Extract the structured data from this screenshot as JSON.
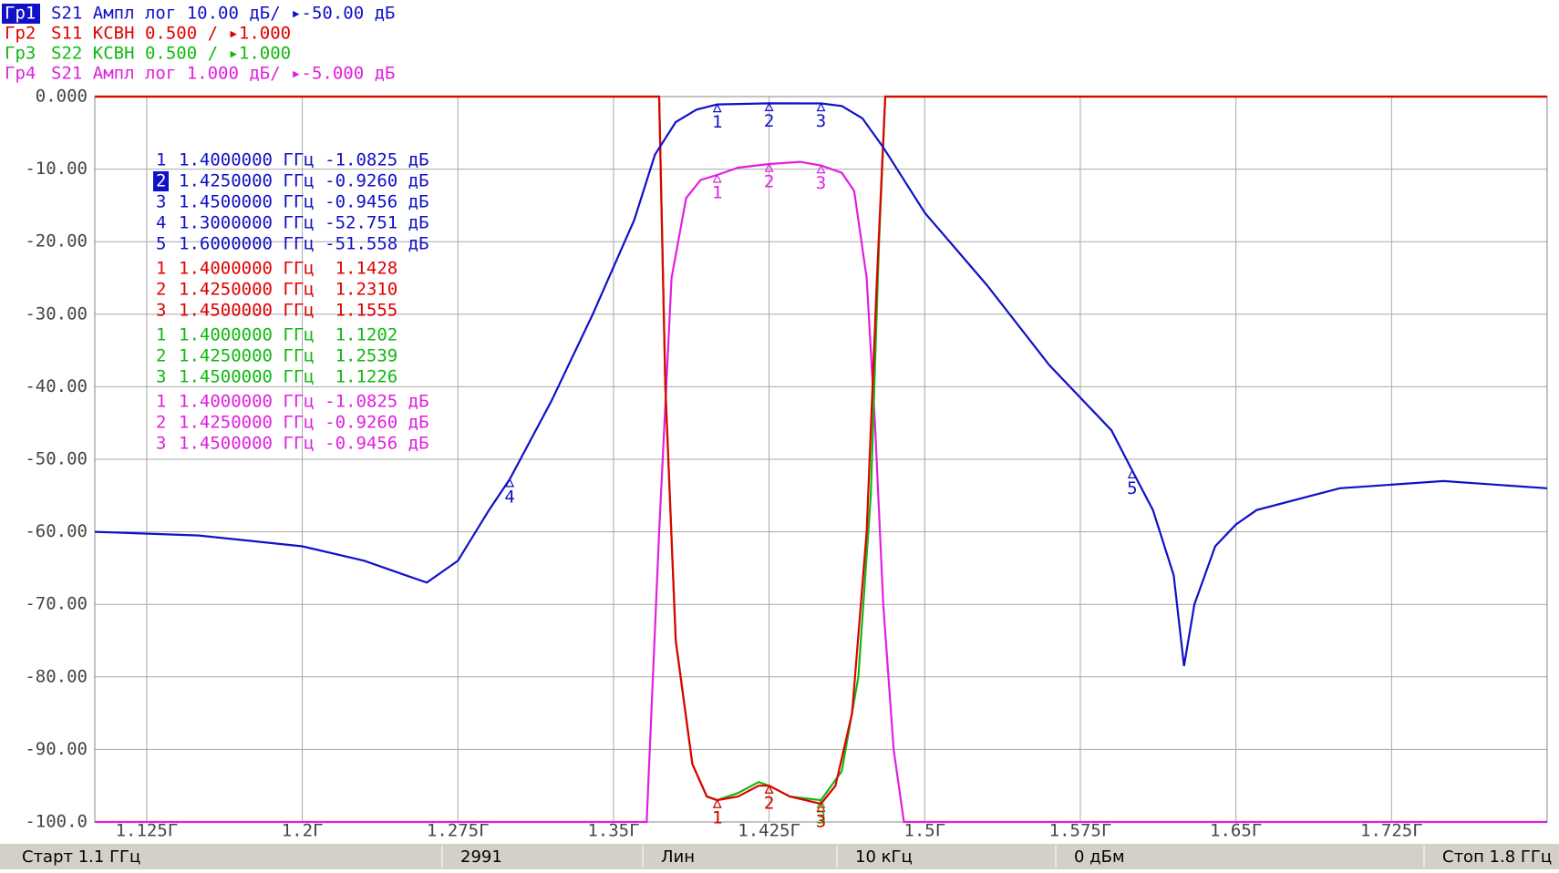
{
  "chart_data": {
    "type": "line",
    "header": [
      {
        "id": "Гр1",
        "text": "S21 Ампл лог 10.00 дБ/ ▸-50.00 дБ",
        "color": "#1010c8"
      },
      {
        "id": "Гр2",
        "text": "S11 КСВН 0.500 / ▸1.000",
        "color": "#e00000"
      },
      {
        "id": "Гр3",
        "text": "S22 КСВН 0.500 / ▸1.000",
        "color": "#10b810"
      },
      {
        "id": "Гр4",
        "text": "S21 Ампл лог 1.000 дБ/ ▸-5.000 дБ",
        "color": "#e020e0"
      }
    ],
    "marker_table": [
      {
        "color": "#1010c8",
        "rows": [
          [
            "1",
            "1.4000000 ГГц -1.0825 дБ"
          ],
          [
            "2",
            "1.4250000 ГГц -0.9260 дБ"
          ],
          [
            "3",
            "1.4500000 ГГц -0.9456 дБ"
          ],
          [
            "4",
            "1.3000000 ГГц -52.751 дБ"
          ],
          [
            "5",
            "1.6000000 ГГц -51.558 дБ"
          ]
        ]
      },
      {
        "color": "#e00000",
        "rows": [
          [
            "1",
            "1.4000000 ГГц  1.1428"
          ],
          [
            "2",
            "1.4250000 ГГц  1.2310"
          ],
          [
            "3",
            "1.4500000 ГГц  1.1555"
          ]
        ]
      },
      {
        "color": "#10b810",
        "rows": [
          [
            "1",
            "1.4000000 ГГц  1.1202"
          ],
          [
            "2",
            "1.4250000 ГГц  1.2539"
          ],
          [
            "3",
            "1.4500000 ГГц  1.1226"
          ]
        ]
      },
      {
        "color": "#e020e0",
        "rows": [
          [
            "1",
            "1.4000000 ГГц -1.0825 дБ"
          ],
          [
            "2",
            "1.4250000 ГГц -0.9260 дБ"
          ],
          [
            "3",
            "1.4500000 ГГц -0.9456 дБ"
          ]
        ]
      }
    ],
    "xlim": [
      1.1,
      1.8
    ],
    "xticks": [
      {
        "value": 1.125,
        "label": "1.125Г"
      },
      {
        "value": 1.2,
        "label": "1.2Г"
      },
      {
        "value": 1.275,
        "label": "1.275Г"
      },
      {
        "value": 1.35,
        "label": "1.35Г"
      },
      {
        "value": 1.425,
        "label": "1.425Г"
      },
      {
        "value": 1.5,
        "label": "1.5Г"
      },
      {
        "value": 1.575,
        "label": "1.575Г"
      },
      {
        "value": 1.65,
        "label": "1.65Г"
      },
      {
        "value": 1.725,
        "label": "1.725Г"
      }
    ],
    "ylim": [
      -100,
      0
    ],
    "yticks": [
      {
        "value": 0,
        "label": "0.000"
      },
      {
        "value": -10,
        "label": "-10.00"
      },
      {
        "value": -20,
        "label": "-20.00"
      },
      {
        "value": -30,
        "label": "-30.00"
      },
      {
        "value": -40,
        "label": "-40.00"
      },
      {
        "value": -50,
        "label": "-50.00"
      },
      {
        "value": -60,
        "label": "-60.00"
      },
      {
        "value": -70,
        "label": "-70.00"
      },
      {
        "value": -80,
        "label": "-80.00"
      },
      {
        "value": -90,
        "label": "-90.00"
      },
      {
        "value": -100,
        "label": "-100.0"
      }
    ],
    "grid": true,
    "series": [
      {
        "color": "#e020e0",
        "x": [
          1.1,
          1.366,
          1.372,
          1.378,
          1.385,
          1.392,
          1.4,
          1.41,
          1.425,
          1.44,
          1.45,
          1.46,
          1.466,
          1.472,
          1.476,
          1.48,
          1.485,
          1.49,
          1.8
        ],
        "values": [
          -100,
          -100,
          -60,
          -25,
          -14,
          -11.5,
          -10.8,
          -9.8,
          -9.3,
          -9,
          -9.5,
          -10.5,
          -13,
          -25,
          -45,
          -70,
          -90,
          -100,
          -100
        ],
        "markers": [
          {
            "label": "1",
            "x": 1.4,
            "y": -10.8
          },
          {
            "label": "2",
            "x": 1.425,
            "y": -9.3
          },
          {
            "label": "3",
            "x": 1.45,
            "y": -9.5
          }
        ]
      },
      {
        "color": "#10b810",
        "x": [
          1.1,
          1.372,
          1.375,
          1.38,
          1.388,
          1.395,
          1.4,
          1.41,
          1.42,
          1.425,
          1.435,
          1.45,
          1.46,
          1.468,
          1.474,
          1.478,
          1.481,
          1.8
        ],
        "values": [
          0,
          0,
          -40,
          -75,
          -92,
          -96.5,
          -97,
          -96,
          -94.5,
          -95,
          -96.5,
          -97,
          -93,
          -80,
          -55,
          -20,
          0,
          0
        ],
        "markers": [
          {
            "label": "1",
            "x": 1.4,
            "y": -97
          },
          {
            "label": "2",
            "x": 1.425,
            "y": -95
          },
          {
            "label": "3",
            "x": 1.45,
            "y": -97
          }
        ]
      },
      {
        "color": "#e00000",
        "x": [
          1.1,
          1.372,
          1.375,
          1.38,
          1.388,
          1.395,
          1.4,
          1.41,
          1.42,
          1.425,
          1.435,
          1.45,
          1.457,
          1.465,
          1.472,
          1.477,
          1.481,
          1.8
        ],
        "values": [
          0,
          0,
          -40,
          -75,
          -92,
          -96.5,
          -97,
          -96.5,
          -95,
          -95,
          -96.5,
          -97.5,
          -95,
          -85,
          -60,
          -25,
          0,
          0
        ],
        "markers": [
          {
            "label": "1",
            "x": 1.4,
            "y": -97
          },
          {
            "label": "2",
            "x": 1.425,
            "y": -95
          },
          {
            "label": "3",
            "x": 1.45,
            "y": -97.5
          }
        ]
      },
      {
        "color": "#1010c8",
        "x": [
          1.1,
          1.15,
          1.2,
          1.23,
          1.25,
          1.26,
          1.275,
          1.29,
          1.3,
          1.32,
          1.34,
          1.36,
          1.37,
          1.38,
          1.39,
          1.4,
          1.425,
          1.45,
          1.46,
          1.47,
          1.48,
          1.5,
          1.53,
          1.56,
          1.59,
          1.6,
          1.61,
          1.62,
          1.625,
          1.63,
          1.64,
          1.65,
          1.66,
          1.7,
          1.75,
          1.8
        ],
        "values": [
          -60,
          -60.5,
          -62,
          -64,
          -66,
          -67,
          -64,
          -57,
          -52.751,
          -42,
          -30,
          -17,
          -8,
          -3.5,
          -1.8,
          -1.0825,
          -0.926,
          -0.9456,
          -1.3,
          -3,
          -7,
          -16,
          -26,
          -37,
          -46,
          -51.558,
          -57,
          -66,
          -78.5,
          -70,
          -62,
          -59,
          -57,
          -54,
          -53,
          -54
        ],
        "markers": [
          {
            "label": "1",
            "x": 1.4,
            "y": -1.0825
          },
          {
            "label": "2",
            "x": 1.425,
            "y": -0.926
          },
          {
            "label": "3",
            "x": 1.45,
            "y": -0.9456
          },
          {
            "label": "4",
            "x": 1.3,
            "y": -52.751
          },
          {
            "label": "5",
            "x": 1.6,
            "y": -51.558
          }
        ]
      }
    ],
    "status": [
      "Старт 1.1 ГГц",
      "2991",
      "Лин",
      "10 кГц",
      "0 дБм",
      "Стоп 1.8 ГГц"
    ]
  }
}
